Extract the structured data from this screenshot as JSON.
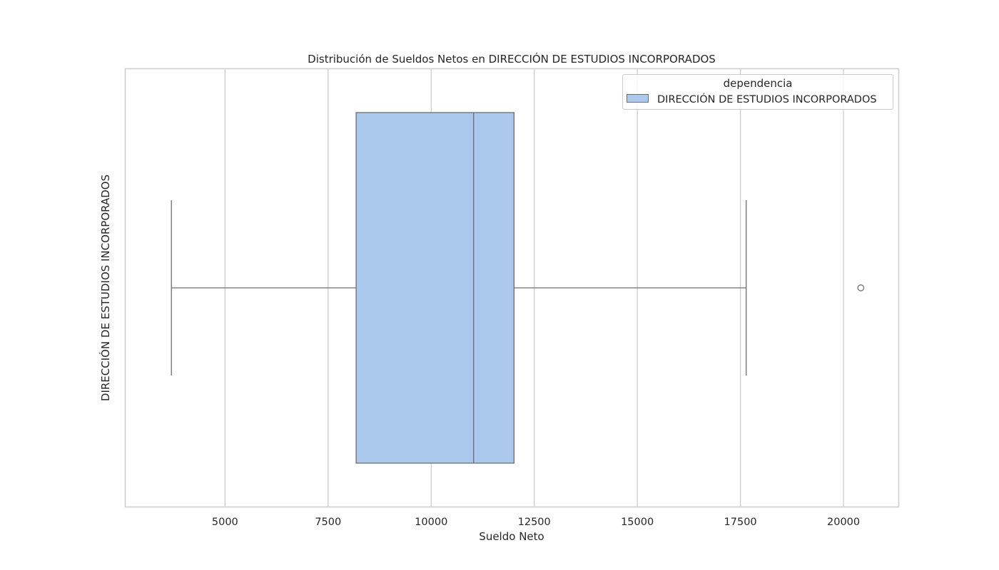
{
  "chart_data": {
    "type": "box",
    "title": "Distribución de Sueldos Netos en DIRECCIÓN DE ESTUDIOS INCORPORADOS",
    "xlabel": "Sueldo Neto",
    "ylabel": "DIRECCIÓN DE ESTUDIOS INCORPORADOS",
    "xlim": [
      2580,
      21340
    ],
    "xticks": [
      5000,
      7500,
      10000,
      12500,
      15000,
      17500,
      20000
    ],
    "grid": true,
    "legend": {
      "title": "dependencia",
      "placement": "top-right",
      "entries": [
        "DIRECCIÓN DE ESTUDIOS INCORPORADOS"
      ]
    },
    "series": [
      {
        "name": "DIRECCIÓN DE ESTUDIOS INCORPORADOS",
        "color": "#abc9ed",
        "edge_color": "#6e6e6e",
        "whisker_low": 3700,
        "q1": 8180,
        "median": 11030,
        "q3": 12010,
        "whisker_high": 17640,
        "outliers": [
          20420
        ]
      }
    ]
  }
}
